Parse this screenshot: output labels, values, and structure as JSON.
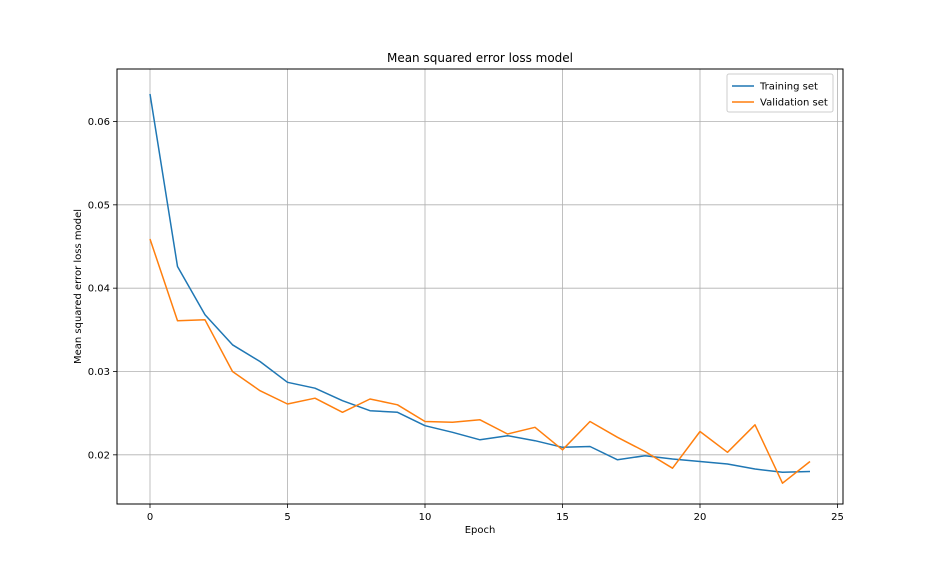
{
  "chart_data": {
    "type": "line",
    "title": "Mean squared error loss model",
    "xlabel": "Epoch",
    "ylabel": "Mean squared error loss model",
    "xlim": [
      -1.2,
      25.2
    ],
    "ylim": [
      0.0141,
      0.0663
    ],
    "xticks": [
      0,
      5,
      10,
      15,
      20,
      25
    ],
    "xtick_labels": [
      "0",
      "5",
      "10",
      "15",
      "20",
      "25"
    ],
    "yticks": [
      0.02,
      0.03,
      0.04,
      0.05,
      0.06
    ],
    "ytick_labels": [
      "0.02",
      "0.03",
      "0.04",
      "0.05",
      "0.06"
    ],
    "grid": true,
    "legend_position": "top-right",
    "x": [
      0,
      1,
      2,
      3,
      4,
      5,
      6,
      7,
      8,
      9,
      10,
      11,
      12,
      13,
      14,
      15,
      16,
      17,
      18,
      19,
      20,
      21,
      22,
      23,
      24
    ],
    "series": [
      {
        "name": "Training set",
        "color": "#1f77b4",
        "values": [
          0.0633,
          0.0426,
          0.0368,
          0.0332,
          0.0312,
          0.0287,
          0.028,
          0.0265,
          0.0253,
          0.0251,
          0.0235,
          0.0227,
          0.0218,
          0.0223,
          0.0217,
          0.0209,
          0.021,
          0.0194,
          0.0199,
          0.0195,
          0.0192,
          0.0189,
          0.0183,
          0.0179,
          0.018
        ]
      },
      {
        "name": "Validation set",
        "color": "#ff7f0e",
        "values": [
          0.0459,
          0.0361,
          0.0362,
          0.03,
          0.0277,
          0.0261,
          0.0268,
          0.0251,
          0.0267,
          0.026,
          0.024,
          0.0239,
          0.0242,
          0.0225,
          0.0233,
          0.0206,
          0.024,
          0.0221,
          0.0204,
          0.0184,
          0.0228,
          0.0203,
          0.0236,
          0.0166,
          0.0192
        ]
      }
    ]
  }
}
